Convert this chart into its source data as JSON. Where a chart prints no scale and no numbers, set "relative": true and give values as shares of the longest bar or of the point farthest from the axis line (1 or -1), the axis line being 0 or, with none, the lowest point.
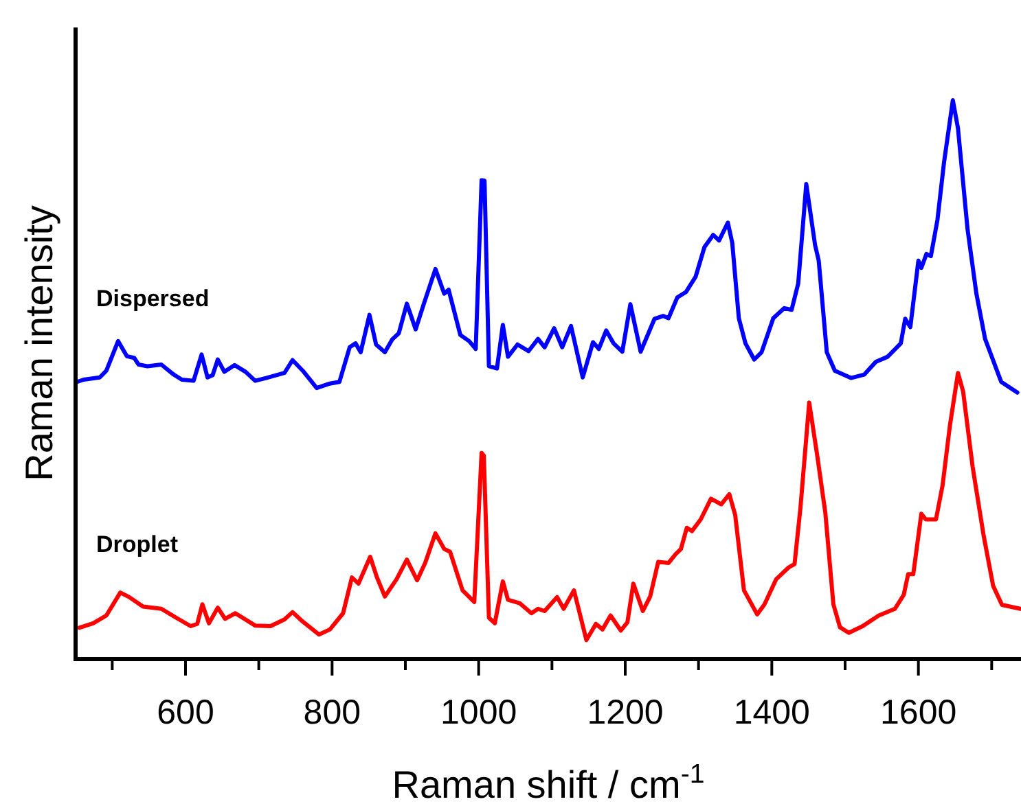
{
  "chart_data": {
    "type": "line",
    "relative": true,
    "xlabel": "Raman shift / cm$^{-1}$",
    "ylabel": "Raman intensity",
    "xlim": [
      450,
      1740
    ],
    "xticks": [
      {
        "value": 500,
        "label": null
      },
      600,
      {
        "value": 700,
        "label": null
      },
      800,
      {
        "value": 900,
        "label": null
      },
      1000,
      {
        "value": 1100,
        "label": null
      },
      1200,
      {
        "value": 1300,
        "label": null
      },
      1400,
      {
        "value": 1500,
        "label": null
      },
      1600,
      {
        "value": 1700,
        "label": null
      }
    ],
    "grid": false,
    "marker": "none",
    "line_style": "solid",
    "series": [
      {
        "name": "Dispersed",
        "color": "#0000ff",
        "x": [
          452,
          461,
          483,
          492,
          508,
          520,
          530,
          536,
          548,
          567,
          583,
          595,
          611,
          622,
          630,
          637,
          644,
          653,
          667,
          682,
          695,
          710,
          735,
          746,
          760,
          779,
          797,
          810,
          824,
          832,
          839,
          851,
          860,
          872,
          882,
          891,
          902,
          914,
          925,
          941,
          953,
          959,
          975,
          987,
          996,
          1004,
          1008,
          1014,
          1025,
          1033,
          1040,
          1053,
          1068,
          1081,
          1090,
          1103,
          1114,
          1126,
          1142,
          1156,
          1164,
          1174,
          1184,
          1196,
          1207,
          1221,
          1240,
          1252,
          1259,
          1271,
          1283,
          1296,
          1308,
          1320,
          1328,
          1340,
          1346,
          1355,
          1364,
          1376,
          1386,
          1402,
          1417,
          1427,
          1436,
          1447,
          1459,
          1464,
          1475,
          1486,
          1508,
          1526,
          1542,
          1558,
          1576,
          1582,
          1589,
          1600,
          1604,
          1611,
          1617,
          1626,
          1635,
          1647,
          1654,
          1667,
          1679,
          1691,
          1713,
          1735
        ],
        "values": [
          0.496,
          0.5,
          0.504,
          0.516,
          0.569,
          0.542,
          0.539,
          0.527,
          0.524,
          0.527,
          0.51,
          0.5,
          0.498,
          0.545,
          0.504,
          0.508,
          0.536,
          0.514,
          0.526,
          0.514,
          0.498,
          0.503,
          0.512,
          0.535,
          0.516,
          0.485,
          0.493,
          0.496,
          0.558,
          0.565,
          0.549,
          0.616,
          0.563,
          0.549,
          0.572,
          0.583,
          0.636,
          0.59,
          0.635,
          0.698,
          0.654,
          0.661,
          0.58,
          0.569,
          0.555,
          0.857,
          0.856,
          0.524,
          0.52,
          0.598,
          0.541,
          0.563,
          0.551,
          0.573,
          0.558,
          0.592,
          0.558,
          0.596,
          0.504,
          0.567,
          0.555,
          0.588,
          0.565,
          0.55,
          0.635,
          0.55,
          0.609,
          0.614,
          0.61,
          0.647,
          0.657,
          0.684,
          0.737,
          0.759,
          0.749,
          0.781,
          0.745,
          0.61,
          0.565,
          0.536,
          0.549,
          0.61,
          0.628,
          0.625,
          0.672,
          0.85,
          0.741,
          0.713,
          0.549,
          0.516,
          0.503,
          0.509,
          0.532,
          0.541,
          0.565,
          0.609,
          0.594,
          0.713,
          0.7,
          0.725,
          0.721,
          0.786,
          0.889,
          1,
          0.95,
          0.77,
          0.655,
          0.573,
          0.496,
          0.477
        ]
      },
      {
        "name": "Droplet",
        "color": "#ff0000",
        "x": [
          455,
          474,
          492,
          511,
          523,
          542,
          567,
          586,
          607,
          616,
          623,
          632,
          644,
          654,
          668,
          695,
          716,
          735,
          746,
          760,
          782,
          797,
          815,
          827,
          836,
          852,
          861,
          872,
          888,
          902,
          916,
          927,
          941,
          953,
          961,
          978,
          994,
          1004,
          1007,
          1014,
          1022,
          1033,
          1040,
          1056,
          1072,
          1081,
          1090,
          1107,
          1116,
          1130,
          1147,
          1160,
          1169,
          1180,
          1194,
          1203,
          1211,
          1224,
          1234,
          1245,
          1259,
          1269,
          1276,
          1284,
          1291,
          1303,
          1317,
          1331,
          1342,
          1350,
          1362,
          1380,
          1390,
          1406,
          1423,
          1431,
          1439,
          1451,
          1462,
          1473,
          1484,
          1493,
          1505,
          1524,
          1546,
          1568,
          1580,
          1586,
          1593,
          1604,
          1610,
          1624,
          1633,
          1643,
          1654,
          1661,
          1674,
          1689,
          1702,
          1714,
          1739
        ],
        "values": [
          0.056,
          0.064,
          0.078,
          0.119,
          0.111,
          0.094,
          0.09,
          0.075,
          0.059,
          0.063,
          0.098,
          0.064,
          0.092,
          0.072,
          0.082,
          0.06,
          0.059,
          0.071,
          0.084,
          0.067,
          0.044,
          0.053,
          0.082,
          0.146,
          0.135,
          0.183,
          0.147,
          0.112,
          0.143,
          0.178,
          0.141,
          0.172,
          0.225,
          0.197,
          0.192,
          0.123,
          0.102,
          0.369,
          0.364,
          0.074,
          0.064,
          0.139,
          0.106,
          0.1,
          0.082,
          0.09,
          0.086,
          0.111,
          0.09,
          0.123,
          0.034,
          0.063,
          0.053,
          0.078,
          0.051,
          0.066,
          0.135,
          0.086,
          0.112,
          0.174,
          0.172,
          0.188,
          0.197,
          0.235,
          0.229,
          0.25,
          0.287,
          0.277,
          0.295,
          0.258,
          0.123,
          0.08,
          0.098,
          0.143,
          0.164,
          0.17,
          0.27,
          0.459,
          0.364,
          0.262,
          0.098,
          0.057,
          0.047,
          0.059,
          0.078,
          0.09,
          0.115,
          0.152,
          0.152,
          0.26,
          0.25,
          0.25,
          0.311,
          0.418,
          0.512,
          0.479,
          0.344,
          0.221,
          0.131,
          0.097,
          0.09
        ]
      }
    ]
  }
}
